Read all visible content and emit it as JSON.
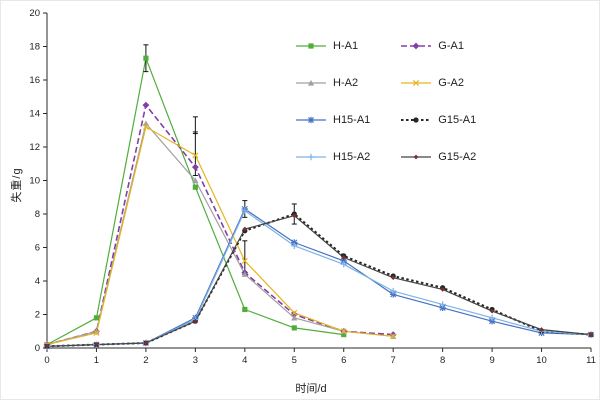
{
  "chart_data": {
    "type": "line",
    "title": "",
    "xlabel": "时间/d",
    "ylabel": "失重/g",
    "xlim": [
      0,
      11
    ],
    "ylim": [
      0,
      20
    ],
    "xtick_step": 1,
    "ytick_step": 2,
    "grid": false,
    "legend_position": "top-center-inside",
    "axis_color": "#2a2a2a",
    "error_bar_color": "#111111",
    "series": [
      {
        "name": "H-A1",
        "color": "#4fae3a",
        "dash": "",
        "width": 1.2,
        "marker": "square",
        "x": [
          0,
          1,
          2,
          3,
          4,
          5,
          6
        ],
        "y": [
          0.2,
          1.8,
          17.3,
          9.6,
          2.3,
          1.2,
          0.8
        ]
      },
      {
        "name": "G-A1",
        "color": "#8040a8",
        "dash": "6,3",
        "width": 1.6,
        "marker": "diamond",
        "x": [
          0,
          1,
          2,
          3,
          4,
          5,
          6,
          7
        ],
        "y": [
          0.2,
          1.0,
          14.5,
          10.8,
          4.5,
          2.0,
          1.0,
          0.8
        ]
      },
      {
        "name": "H-A2",
        "color": "#a0a0a0",
        "dash": "",
        "width": 1.2,
        "marker": "triangle",
        "x": [
          0,
          1,
          2,
          3,
          4,
          5,
          6,
          7
        ],
        "y": [
          0.2,
          1.0,
          13.4,
          10.0,
          4.4,
          1.8,
          1.0,
          0.7
        ]
      },
      {
        "name": "G-A2",
        "color": "#e5b51e",
        "dash": "",
        "width": 1.2,
        "marker": "x",
        "x": [
          0,
          1,
          2,
          3,
          4,
          5,
          6,
          7
        ],
        "y": [
          0.2,
          0.9,
          13.2,
          11.5,
          5.2,
          2.1,
          1.0,
          0.7
        ]
      },
      {
        "name": "H15-A1",
        "color": "#4472c4",
        "dash": "",
        "width": 1.2,
        "marker": "asterisk",
        "x": [
          0,
          1,
          2,
          3,
          4,
          5,
          6,
          7,
          8,
          9,
          10,
          11
        ],
        "y": [
          0.1,
          0.2,
          0.3,
          1.8,
          8.3,
          6.3,
          5.2,
          3.2,
          2.4,
          1.6,
          0.9,
          0.8
        ]
      },
      {
        "name": "G15-A1",
        "color": "#262626",
        "dash": "2.5,2.5",
        "width": 2.0,
        "marker": "circle",
        "x": [
          0,
          1,
          2,
          3,
          4,
          5,
          6,
          7,
          8,
          9,
          10,
          11
        ],
        "y": [
          0.1,
          0.2,
          0.3,
          1.6,
          7.0,
          8.0,
          5.5,
          4.3,
          3.6,
          2.3,
          1.0,
          0.8
        ]
      },
      {
        "name": "H15-A2",
        "color": "#7fb2e5",
        "dash": "",
        "width": 1.2,
        "marker": "plus",
        "x": [
          0,
          1,
          2,
          3,
          4,
          5,
          6,
          7,
          8,
          9,
          10,
          11
        ],
        "y": [
          0.1,
          0.2,
          0.3,
          1.7,
          8.2,
          6.1,
          5.0,
          3.4,
          2.6,
          1.8,
          1.0,
          0.8
        ]
      },
      {
        "name": "G15-A2",
        "color": "#7a3030",
        "dash": "",
        "width": 1.2,
        "marker": "diamond-small",
        "line_color": "#454545",
        "x": [
          0,
          1,
          2,
          3,
          4,
          5,
          6,
          7,
          8,
          9,
          10,
          11
        ],
        "y": [
          0.1,
          0.2,
          0.3,
          1.6,
          7.1,
          7.9,
          5.4,
          4.2,
          3.5,
          2.2,
          1.1,
          0.8
        ]
      }
    ],
    "error_bars": [
      {
        "x": 2,
        "y": 17.3,
        "e": 0.8
      },
      {
        "x": 3,
        "y": 11.6,
        "e": 1.3
      },
      {
        "x": 3,
        "y": 13.3,
        "e": 0.5
      },
      {
        "x": 4,
        "y": 8.3,
        "e": 0.5
      },
      {
        "x": 4,
        "y": 5.4,
        "e": 1.0
      },
      {
        "x": 5,
        "y": 8.0,
        "e": 0.6
      }
    ]
  }
}
